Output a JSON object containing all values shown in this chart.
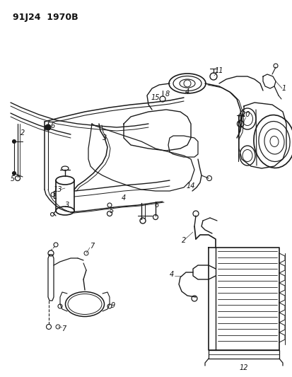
{
  "title": "91J24  1970B",
  "bg_color": "#ffffff",
  "line_color": "#1a1a1a",
  "text_color": "#111111",
  "fig_width": 4.14,
  "fig_height": 5.33,
  "dpi": 100
}
